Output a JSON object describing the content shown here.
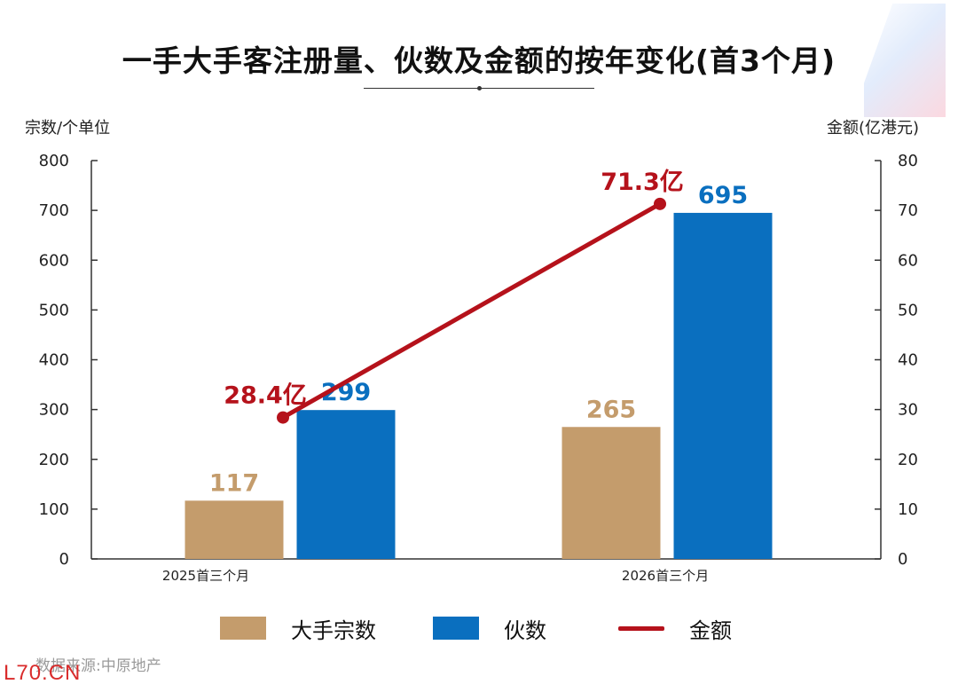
{
  "header": {
    "title": "一手大手客注册量、伙数及金额的按年变化(首3个月)"
  },
  "chart_data": {
    "type": "bar",
    "categories": [
      "2025首三个月",
      "2026首三个月"
    ],
    "series": [
      {
        "name": "大手宗数",
        "kind": "bar",
        "axis": "left",
        "values": [
          117,
          265
        ],
        "labels": [
          "117",
          "265"
        ],
        "color": "#C49C6C"
      },
      {
        "name": "伙数",
        "kind": "bar",
        "axis": "left",
        "values": [
          299,
          695
        ],
        "labels": [
          "299",
          "695"
        ],
        "color": "#0A6FBF"
      },
      {
        "name": "金额",
        "kind": "line",
        "axis": "right",
        "values": [
          28.4,
          71.3
        ],
        "labels": [
          "28.4亿",
          "71.3亿"
        ],
        "color": "#B5121B"
      }
    ],
    "left_axis": {
      "label": "宗数/个单位",
      "ylim": [
        0,
        800
      ],
      "ticks": [
        0,
        100,
        200,
        300,
        400,
        500,
        600,
        700,
        800
      ]
    },
    "right_axis": {
      "label": "金额(亿港元)",
      "ylim": [
        0,
        80
      ],
      "ticks": [
        0,
        10,
        20,
        30,
        40,
        50,
        60,
        70,
        80
      ]
    },
    "grid": false,
    "legend_position": "bottom"
  },
  "legend": [
    {
      "label": "大手宗数",
      "color": "#C49C6C",
      "kind": "bar"
    },
    {
      "label": "伙数",
      "color": "#0A6FBF",
      "kind": "bar"
    },
    {
      "label": "金额",
      "color": "#B5121B",
      "kind": "line"
    }
  ],
  "footer": {
    "source": "数据来源:中原地产",
    "watermark": "L70.CN"
  }
}
